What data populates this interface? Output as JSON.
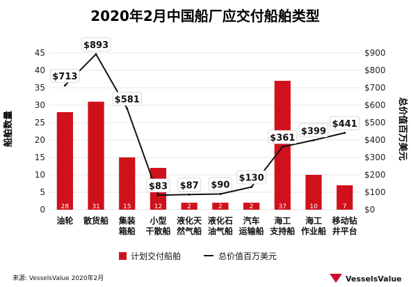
{
  "title": "2020年2月中国船厂应交付船舶类型",
  "source": "来源: VesselsValue 2020年2月",
  "brand": {
    "name": "VesselsValue",
    "color": "#c8102e"
  },
  "legend": {
    "bars_label": "计划交付船舶",
    "line_label": "总价值百万美元"
  },
  "colors": {
    "bar": "#d0111b",
    "line": "#111111",
    "grid": "#e6e6e6"
  },
  "chart_data": {
    "type": "bar+line",
    "title": "2020年2月中国船厂应交付船舶类型",
    "categories": [
      [
        "油轮"
      ],
      [
        "散货船"
      ],
      [
        "集装",
        "箱船"
      ],
      [
        "小型",
        "干散船"
      ],
      [
        "液化天",
        "然气船"
      ],
      [
        "液化石",
        "油气船"
      ],
      [
        "汽车",
        "运输船"
      ],
      [
        "海工",
        "支持船"
      ],
      [
        "海工",
        "作业船"
      ],
      [
        "移动钻",
        "井平台"
      ]
    ],
    "bars": {
      "name": "计划交付船舶",
      "axis": "left",
      "values": [
        28,
        31,
        15,
        12,
        2,
        2,
        2,
        37,
        10,
        7
      ]
    },
    "line": {
      "name": "总价值百万美元",
      "axis": "right",
      "values": [
        713,
        893,
        581,
        83,
        87,
        90,
        130,
        361,
        399,
        441
      ],
      "labels": [
        "$713",
        "$893",
        "$581",
        "$83",
        "$87",
        "$90",
        "$130",
        "$361",
        "$399",
        "$441"
      ]
    },
    "ylabel_left": "船舶数量",
    "ylabel_right": "总价值百万美元",
    "ylim_left": [
      0,
      45
    ],
    "yticks_left": [
      "0",
      "5",
      "10",
      "15",
      "20",
      "25",
      "30",
      "35",
      "40",
      "45"
    ],
    "ylim_right": [
      0,
      900
    ],
    "yticks_right": [
      "$0",
      "$100",
      "$200",
      "$300",
      "$400",
      "$500",
      "$600",
      "$700",
      "$800",
      "$900"
    ],
    "grid": true,
    "legend_position": "bottom"
  }
}
